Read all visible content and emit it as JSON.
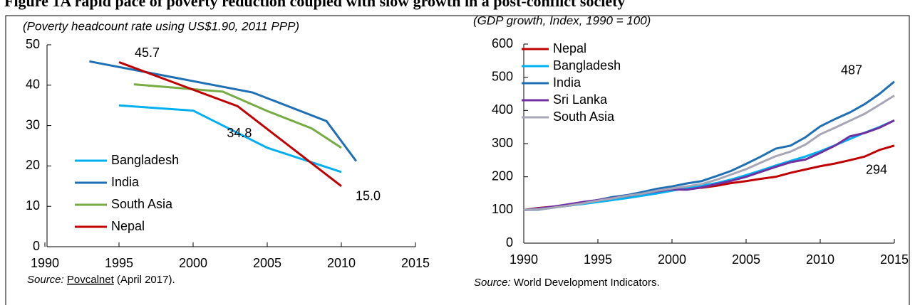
{
  "header": {
    "title": "Figure 1A rapid pace of poverty reduction coupled with slow growth in a post-conflict society"
  },
  "chart_data": [
    {
      "type": "line",
      "subtitle": "(Poverty headcount rate using US$1.90, 2011 PPP)",
      "xlim": [
        1990,
        2015
      ],
      "xticks": [
        1990,
        1995,
        2000,
        2005,
        2010,
        2015
      ],
      "ylim": [
        0,
        50
      ],
      "yticks": [
        0,
        10,
        20,
        30,
        40,
        50
      ],
      "legend": "lower left",
      "series": [
        {
          "name": "Bangladesh",
          "color": "#00b0f0",
          "x": [
            1995,
            2000,
            2005,
            2010
          ],
          "values": [
            35.0,
            33.7,
            24.5,
            18.5
          ]
        },
        {
          "name": "India",
          "color": "#1f6fb5",
          "x": [
            1993,
            2004,
            2009,
            2011
          ],
          "values": [
            45.9,
            38.2,
            31.1,
            21.2
          ]
        },
        {
          "name": "South Asia",
          "color": "#77ac45",
          "x": [
            1996,
            2002,
            2005,
            2008,
            2010
          ],
          "values": [
            40.2,
            38.4,
            33.6,
            29.3,
            24.5
          ]
        },
        {
          "name": "Nepal",
          "color": "#c00000",
          "x": [
            1995,
            2003,
            2010
          ],
          "values": [
            45.7,
            34.8,
            15.0
          ],
          "value_labels": [
            "45.7",
            "34.8",
            "15.0"
          ]
        }
      ],
      "source": {
        "label": "Source:",
        "link": "Povcalnet",
        "text": "(April 2017)."
      }
    },
    {
      "type": "line",
      "subtitle": "(GDP growth, Index, 1990 = 100)",
      "xlim": [
        1990,
        2015
      ],
      "xticks": [
        1990,
        1995,
        2000,
        2005,
        2010,
        2015
      ],
      "ylim": [
        0,
        600
      ],
      "yticks": [
        0,
        100,
        200,
        300,
        400,
        500,
        600
      ],
      "legend": "upper left",
      "series": [
        {
          "name": "Nepal",
          "color": "#c00000",
          "x": [
            1990,
            1991,
            1992,
            1993,
            1994,
            1995,
            1996,
            1997,
            1998,
            1999,
            2000,
            2001,
            2002,
            2003,
            2004,
            2005,
            2006,
            2007,
            2008,
            2009,
            2010,
            2011,
            2012,
            2013,
            2014,
            2015
          ],
          "values": [
            100,
            106,
            110,
            114,
            122,
            127,
            134,
            140,
            144,
            151,
            160,
            167,
            167,
            173,
            181,
            187,
            194,
            200,
            212,
            222,
            232,
            240,
            250,
            261,
            281,
            294
          ],
          "value_labels": [
            null,
            null,
            null,
            null,
            null,
            null,
            null,
            null,
            null,
            null,
            null,
            null,
            null,
            null,
            null,
            null,
            null,
            null,
            null,
            null,
            null,
            null,
            null,
            null,
            null,
            "294"
          ]
        },
        {
          "name": "Bangladesh",
          "color": "#00b0f0",
          "x": [
            1990,
            1991,
            1992,
            1993,
            1994,
            1995,
            1996,
            1997,
            1998,
            1999,
            2000,
            2001,
            2002,
            2003,
            2004,
            2005,
            2006,
            2007,
            2008,
            2009,
            2010,
            2011,
            2012,
            2013,
            2014,
            2015
          ],
          "values": [
            100,
            103,
            108,
            113,
            118,
            124,
            130,
            136,
            143,
            150,
            158,
            166,
            173,
            181,
            192,
            205,
            219,
            234,
            248,
            261,
            277,
            295,
            314,
            333,
            350,
            370
          ]
        },
        {
          "name": "India",
          "color": "#1f6fb5",
          "x": [
            1990,
            1991,
            1992,
            1993,
            1994,
            1995,
            1996,
            1997,
            1998,
            1999,
            2000,
            2001,
            2002,
            2003,
            2004,
            2005,
            2006,
            2007,
            2008,
            2009,
            2010,
            2011,
            2012,
            2013,
            2014,
            2015
          ],
          "values": [
            100,
            101,
            107,
            113,
            121,
            130,
            139,
            145,
            154,
            164,
            171,
            180,
            187,
            202,
            218,
            239,
            261,
            285,
            294,
            319,
            352,
            374,
            394,
            419,
            450,
            487
          ],
          "value_labels": [
            null,
            null,
            null,
            null,
            null,
            null,
            null,
            null,
            null,
            null,
            null,
            null,
            null,
            null,
            null,
            null,
            null,
            null,
            null,
            null,
            null,
            null,
            null,
            null,
            null,
            "487"
          ]
        },
        {
          "name": "Sri Lanka",
          "color": "#7030a0",
          "x": [
            1990,
            1991,
            1992,
            1993,
            1994,
            1995,
            1996,
            1997,
            1998,
            1999,
            2000,
            2001,
            2002,
            2003,
            2004,
            2005,
            2006,
            2007,
            2008,
            2009,
            2010,
            2011,
            2012,
            2013,
            2014,
            2015
          ],
          "values": [
            100,
            105,
            110,
            117,
            124,
            130,
            136,
            143,
            149,
            156,
            162,
            161,
            168,
            178,
            188,
            200,
            215,
            230,
            244,
            252,
            272,
            294,
            322,
            332,
            348,
            370
          ]
        },
        {
          "name": "South Asia",
          "color": "#a6a6b6",
          "x": [
            1990,
            1991,
            1992,
            1993,
            1994,
            1995,
            1996,
            1997,
            1998,
            1999,
            2000,
            2001,
            2002,
            2003,
            2004,
            2005,
            2006,
            2007,
            2008,
            2009,
            2010,
            2011,
            2012,
            2013,
            2014,
            2015
          ],
          "values": [
            100,
            102,
            107,
            113,
            120,
            128,
            135,
            143,
            149,
            158,
            165,
            171,
            178,
            191,
            207,
            223,
            243,
            262,
            276,
            297,
            328,
            348,
            369,
            390,
            417,
            445
          ]
        }
      ],
      "source": {
        "label": "Source:",
        "text": "World Development Indicators."
      }
    }
  ]
}
